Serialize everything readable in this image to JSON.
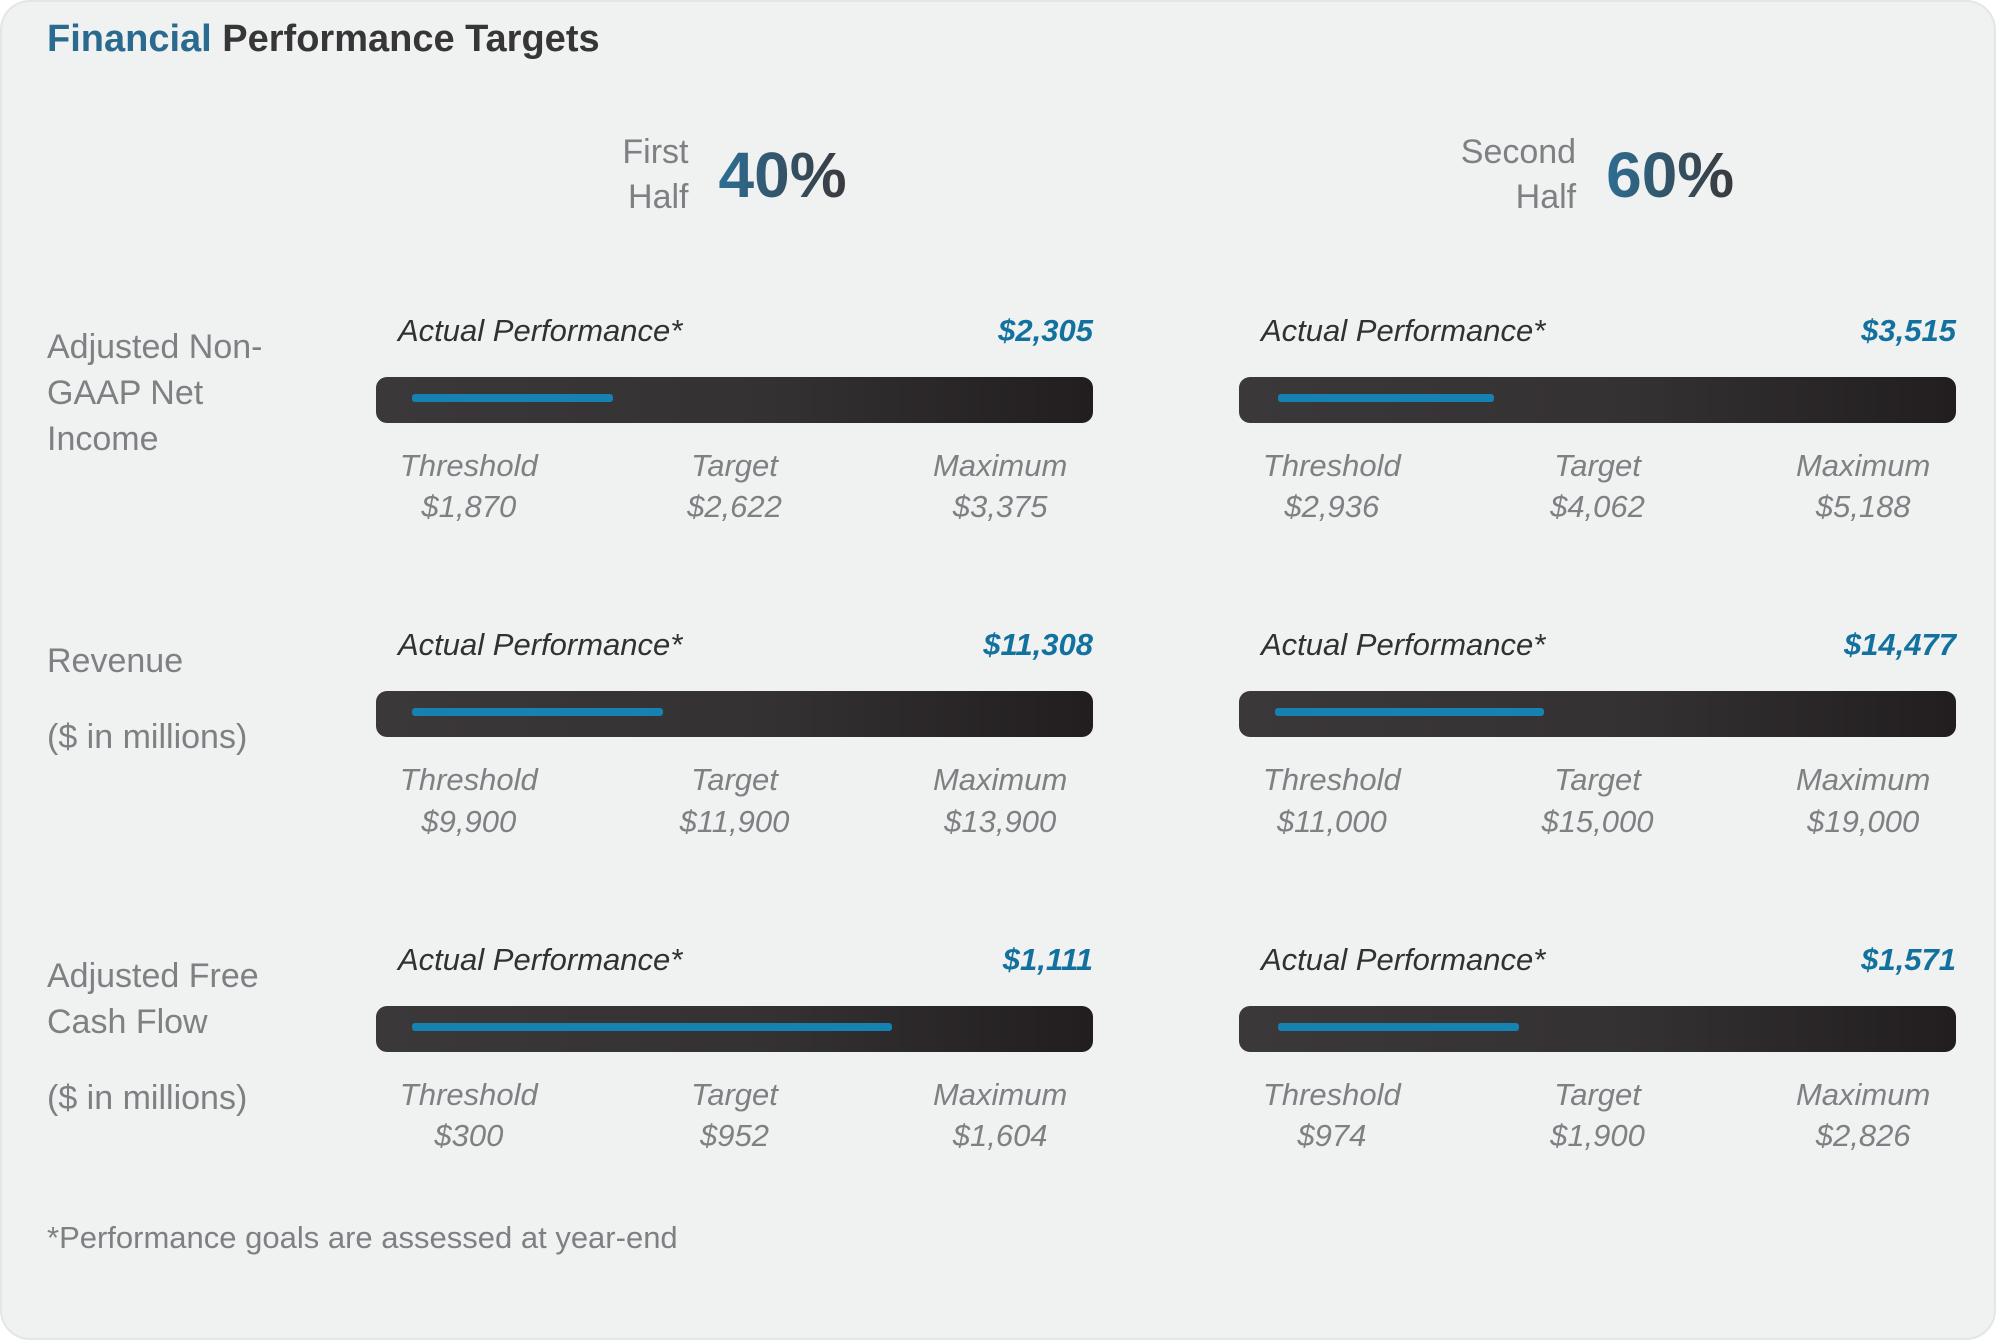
{
  "title": {
    "accent": "Financial",
    "rest": " Performance Targets"
  },
  "columns": [
    {
      "label_line1": "First",
      "label_line2": "Half",
      "weight": "40%"
    },
    {
      "label_line1": "Second",
      "label_line2": "Half",
      "weight": "60%"
    }
  ],
  "actual_label": "Actual Performance*",
  "scale_labels": {
    "threshold": "Threshold",
    "target": "Target",
    "maximum": "Maximum"
  },
  "footnote": "*Performance goals are assessed at year-end",
  "colors": {
    "card_background": "#f0f1f1",
    "title_accent": "#2a6a8e",
    "dark_text": "#363638",
    "gray_text": "#7e8083",
    "value_blue": "#13719f",
    "line_blue": "#1682b2",
    "bar_dark_left": "#3b383a",
    "bar_dark_right": "#221e1f"
  },
  "metrics": [
    {
      "name": "Adjusted Non-GAAP Net Income",
      "unit": "",
      "halves": [
        {
          "actual": "$2,305",
          "threshold": "$1,870",
          "target": "$2,622",
          "maximum": "$3,375",
          "line_start_pct": 5,
          "line_width_pct": 28
        },
        {
          "actual": "$3,515",
          "threshold": "$2,936",
          "target": "$4,062",
          "maximum": "$5,188",
          "line_start_pct": 5.5,
          "line_width_pct": 30
        }
      ]
    },
    {
      "name": "Revenue",
      "unit": "($ in millions)",
      "halves": [
        {
          "actual": "$11,308",
          "threshold": "$9,900",
          "target": "$11,900",
          "maximum": "$13,900",
          "line_start_pct": 5,
          "line_width_pct": 35
        },
        {
          "actual": "$14,477",
          "threshold": "$11,000",
          "target": "$15,000",
          "maximum": "$19,000",
          "line_start_pct": 5,
          "line_width_pct": 37.5
        }
      ]
    },
    {
      "name": "Adjusted Free Cash Flow",
      "unit": "($ in millions)",
      "halves": [
        {
          "actual": "$1,111",
          "threshold": "$300",
          "target": "$952",
          "maximum": "$1,604",
          "line_start_pct": 5,
          "line_width_pct": 67
        },
        {
          "actual": "$1,571",
          "threshold": "$974",
          "target": "$1,900",
          "maximum": "$2,826",
          "line_start_pct": 5.5,
          "line_width_pct": 33.5
        }
      ]
    }
  ],
  "chart_data": {
    "type": "bar",
    "title": "Financial Performance Targets",
    "legend_position": "none",
    "weights": {
      "first_half": "40%",
      "second_half": "60%"
    },
    "annotations": [
      "*Performance goals are assessed at year-end"
    ],
    "groups": [
      {
        "metric": "Adjusted Non-GAAP Net Income",
        "half": "First Half (40%)",
        "actual": 2305,
        "threshold": 1870,
        "target": 2622,
        "maximum": 3375
      },
      {
        "metric": "Adjusted Non-GAAP Net Income",
        "half": "Second Half (60%)",
        "actual": 3515,
        "threshold": 2936,
        "target": 4062,
        "maximum": 5188
      },
      {
        "metric": "Revenue ($ in millions)",
        "half": "First Half (40%)",
        "actual": 11308,
        "threshold": 9900,
        "target": 11900,
        "maximum": 13900
      },
      {
        "metric": "Revenue ($ in millions)",
        "half": "Second Half (60%)",
        "actual": 14477,
        "threshold": 11000,
        "target": 15000,
        "maximum": 19000
      },
      {
        "metric": "Adjusted Free Cash Flow ($ in millions)",
        "half": "First Half (40%)",
        "actual": 1111,
        "threshold": 300,
        "target": 952,
        "maximum": 1604
      },
      {
        "metric": "Adjusted Free Cash Flow ($ in millions)",
        "half": "Second Half (60%)",
        "actual": 1571,
        "threshold": 974,
        "target": 1900,
        "maximum": 2826
      }
    ]
  }
}
